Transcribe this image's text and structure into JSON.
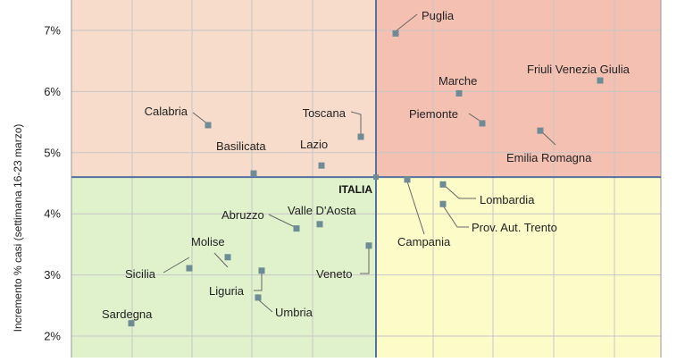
{
  "chart_data": {
    "type": "scatter",
    "ylabel": "Incremento % casi (settimana 16-23 marzo)",
    "ylim": [
      1.65,
      7.5
    ],
    "yticks": [
      2,
      3,
      4,
      5,
      6,
      7
    ],
    "ytick_labels": [
      "2%",
      "3%",
      "4%",
      "5%",
      "6%",
      "7%"
    ],
    "reference": {
      "name": "ITALIA",
      "y": 4.6
    },
    "grid": true,
    "quadrant_colors": {
      "top_left": "#F8DCCB",
      "top_right": "#F4C0B2",
      "bottom_left": "#DFF2CC",
      "bottom_right": "#FDFBC8"
    },
    "marker_color": "#6F8C96",
    "line_color": "#5570A0",
    "points": [
      {
        "name": "Puglia",
        "y": 6.95
      },
      {
        "name": "Friuli Venezia Giulia",
        "y": 6.18
      },
      {
        "name": "Marche",
        "y": 5.97
      },
      {
        "name": "Piemonte",
        "y": 5.48
      },
      {
        "name": "Emilia Romagna",
        "y": 5.36
      },
      {
        "name": "Calabria",
        "y": 5.45
      },
      {
        "name": "Toscana",
        "y": 5.26
      },
      {
        "name": "Lazio",
        "y": 4.79
      },
      {
        "name": "Basilicata",
        "y": 4.66
      },
      {
        "name": "Campania",
        "y": 4.56
      },
      {
        "name": "Lombardia",
        "y": 4.48
      },
      {
        "name": "Prov. Aut. Trento",
        "y": 4.16
      },
      {
        "name": "Valle D'Aosta",
        "y": 3.83
      },
      {
        "name": "Abruzzo",
        "y": 3.76
      },
      {
        "name": "Veneto",
        "y": 3.48
      },
      {
        "name": "Molise",
        "y": 3.29
      },
      {
        "name": "Sicilia",
        "y": 3.11
      },
      {
        "name": "Liguria",
        "y": 3.07
      },
      {
        "name": "Umbria",
        "y": 2.63
      },
      {
        "name": "Sardegna",
        "y": 2.21
      }
    ]
  }
}
